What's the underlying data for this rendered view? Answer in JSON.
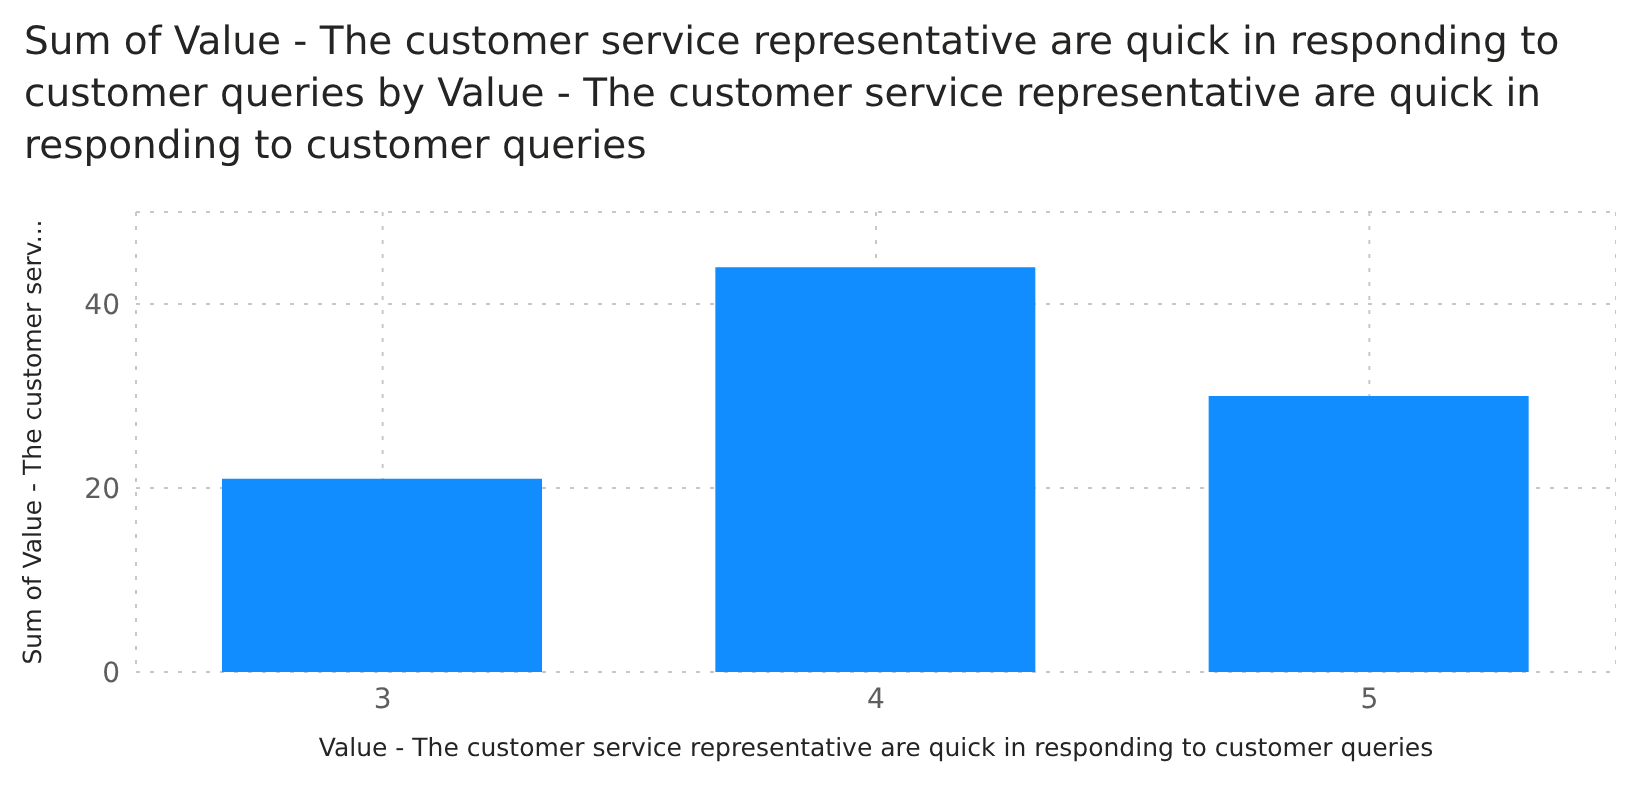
{
  "chart_data": {
    "type": "bar",
    "title": "Sum of Value - The customer service representative are quick in responding to customer queries by Value - The customer service representative are quick in responding to customer queries",
    "xlabel": "Value - The customer service representative are quick in responding to customer queries",
    "ylabel": "Sum of Value - The customer serv...",
    "categories": [
      "3",
      "4",
      "5"
    ],
    "values": [
      21,
      44,
      30
    ],
    "color": "#118dff",
    "ylim": [
      0,
      50
    ],
    "yticks": [
      0,
      20,
      40
    ],
    "grid": true
  }
}
